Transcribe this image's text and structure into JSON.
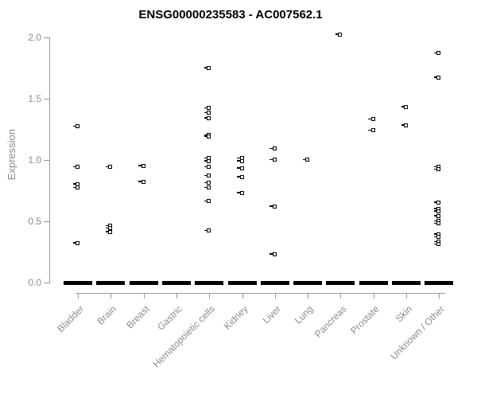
{
  "chart_data": {
    "type": "scatter",
    "title": "ENSG00000235583 - AC007562.1",
    "ylabel": "Expression",
    "xlabel": "",
    "ylim": [
      0,
      2.05
    ],
    "yticks": [
      "0.0",
      "0.5",
      "1.0",
      "1.5",
      "2.0"
    ],
    "grid": false,
    "legend": null,
    "marker": "open-black-square-with-left-tick",
    "colors": {
      "points": "#000000",
      "axis": "#999999",
      "tick_labels": "#8c8c8c",
      "title": "#000000",
      "background": "#ffffff"
    },
    "zero_bar_note": "thick solid black dash at y=0.0 under every category (many samples with zero expression)",
    "categories": [
      {
        "label": "Bladder",
        "values": [
          1.27,
          0.94,
          0.8,
          0.77,
          0.32
        ],
        "zero_bar": true
      },
      {
        "label": "Brain",
        "values": [
          0.94,
          0.46,
          0.44,
          0.41
        ],
        "zero_bar": true
      },
      {
        "label": "Breast",
        "values": [
          0.95,
          0.82
        ],
        "zero_bar": true
      },
      {
        "label": "Gastric",
        "values": [],
        "zero_bar": true
      },
      {
        "label": "Hematopoietic cells",
        "values": [
          1.75,
          1.42,
          1.38,
          1.34,
          1.2,
          1.19,
          1.01,
          0.99,
          0.94,
          0.87,
          0.81,
          0.77,
          0.66,
          0.42
        ],
        "zero_bar": true
      },
      {
        "label": "Kidney",
        "values": [
          1.01,
          0.99,
          0.93,
          0.86,
          0.73
        ],
        "zero_bar": true
      },
      {
        "label": "Liver",
        "values": [
          1.09,
          1.0,
          0.62,
          0.23
        ],
        "zero_bar": true
      },
      {
        "label": "Lung",
        "values": [
          1.0
        ],
        "zero_bar": true
      },
      {
        "label": "Pancreas",
        "values": [
          2.02
        ],
        "zero_bar": true
      },
      {
        "label": "Prostate",
        "values": [
          1.33,
          1.24
        ],
        "zero_bar": true
      },
      {
        "label": "Skin",
        "values": [
          1.43,
          1.28
        ],
        "zero_bar": true
      },
      {
        "label": "Unknown / Other",
        "values": [
          1.87,
          1.67,
          0.94,
          0.92,
          0.65,
          0.6,
          0.58,
          0.54,
          0.5,
          0.48,
          0.39,
          0.37,
          0.33,
          0.31
        ],
        "zero_bar": true
      }
    ]
  }
}
